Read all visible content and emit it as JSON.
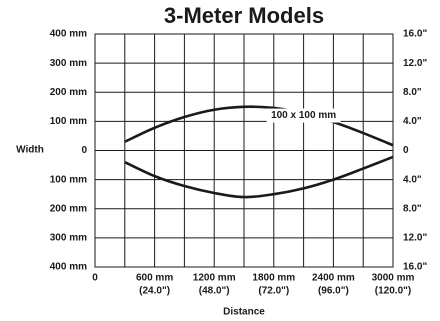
{
  "chart_data": {
    "type": "line",
    "title": "3-Meter Models",
    "xlabel": "Distance",
    "ylabel": "Width",
    "annotation": {
      "text": "100 x 100 mm",
      "x": 2100,
      "y": 120
    },
    "x": [
      300,
      600,
      900,
      1200,
      1500,
      1800,
      2100,
      2400,
      2700,
      3000
    ],
    "series": [
      {
        "color": "#1a1a1a",
        "values": [
          30,
          78,
          115,
          140,
          150,
          146,
          128,
          98,
          60,
          18
        ]
      },
      {
        "color": "#1a1a1a",
        "values": [
          -40,
          -88,
          -122,
          -146,
          -160,
          -150,
          -130,
          -100,
          -62,
          -22
        ]
      }
    ],
    "xlim": [
      0,
      3000
    ],
    "xticks": [
      {
        "value": 0,
        "label": "0"
      },
      {
        "value": 300,
        "label": null
      },
      {
        "value": 600,
        "label": "600 mm",
        "sublabel": "(24.0\")"
      },
      {
        "value": 900,
        "label": null
      },
      {
        "value": 1200,
        "label": "1200 mm",
        "sublabel": "(48.0\")"
      },
      {
        "value": 1500,
        "label": null
      },
      {
        "value": 1800,
        "label": "1800 mm",
        "sublabel": "(72.0\")"
      },
      {
        "value": 2100,
        "label": null
      },
      {
        "value": 2400,
        "label": "2400 mm",
        "sublabel": "(96.0\")"
      },
      {
        "value": 2700,
        "label": null
      },
      {
        "value": 3000,
        "label": "3000 mm",
        "sublabel": "(120.0\")"
      }
    ],
    "ylim": [
      -400,
      400
    ],
    "yticks": [
      {
        "value": 400,
        "label": "400 mm"
      },
      {
        "value": 300,
        "label": "300 mm"
      },
      {
        "value": 200,
        "label": "200 mm"
      },
      {
        "value": 100,
        "label": "100 mm"
      },
      0,
      {
        "value": -100,
        "label": "100 mm"
      },
      {
        "value": -200,
        "label": "200 mm"
      },
      {
        "value": -300,
        "label": "300 mm"
      },
      {
        "value": -400,
        "label": "400 mm"
      }
    ],
    "y2lim": [
      -16,
      16
    ],
    "y2ticks": [
      {
        "value": 16,
        "label": "16.0\""
      },
      {
        "value": 12,
        "label": "12.0\""
      },
      {
        "value": 8,
        "label": "8.0\""
      },
      {
        "value": 4,
        "label": "4.0\""
      },
      0,
      {
        "value": -4,
        "label": "4.0\""
      },
      {
        "value": -8,
        "label": "8.0\""
      },
      {
        "value": -12,
        "label": "12.0\""
      },
      {
        "value": -16,
        "label": "16.0\""
      }
    ],
    "grid": true
  }
}
